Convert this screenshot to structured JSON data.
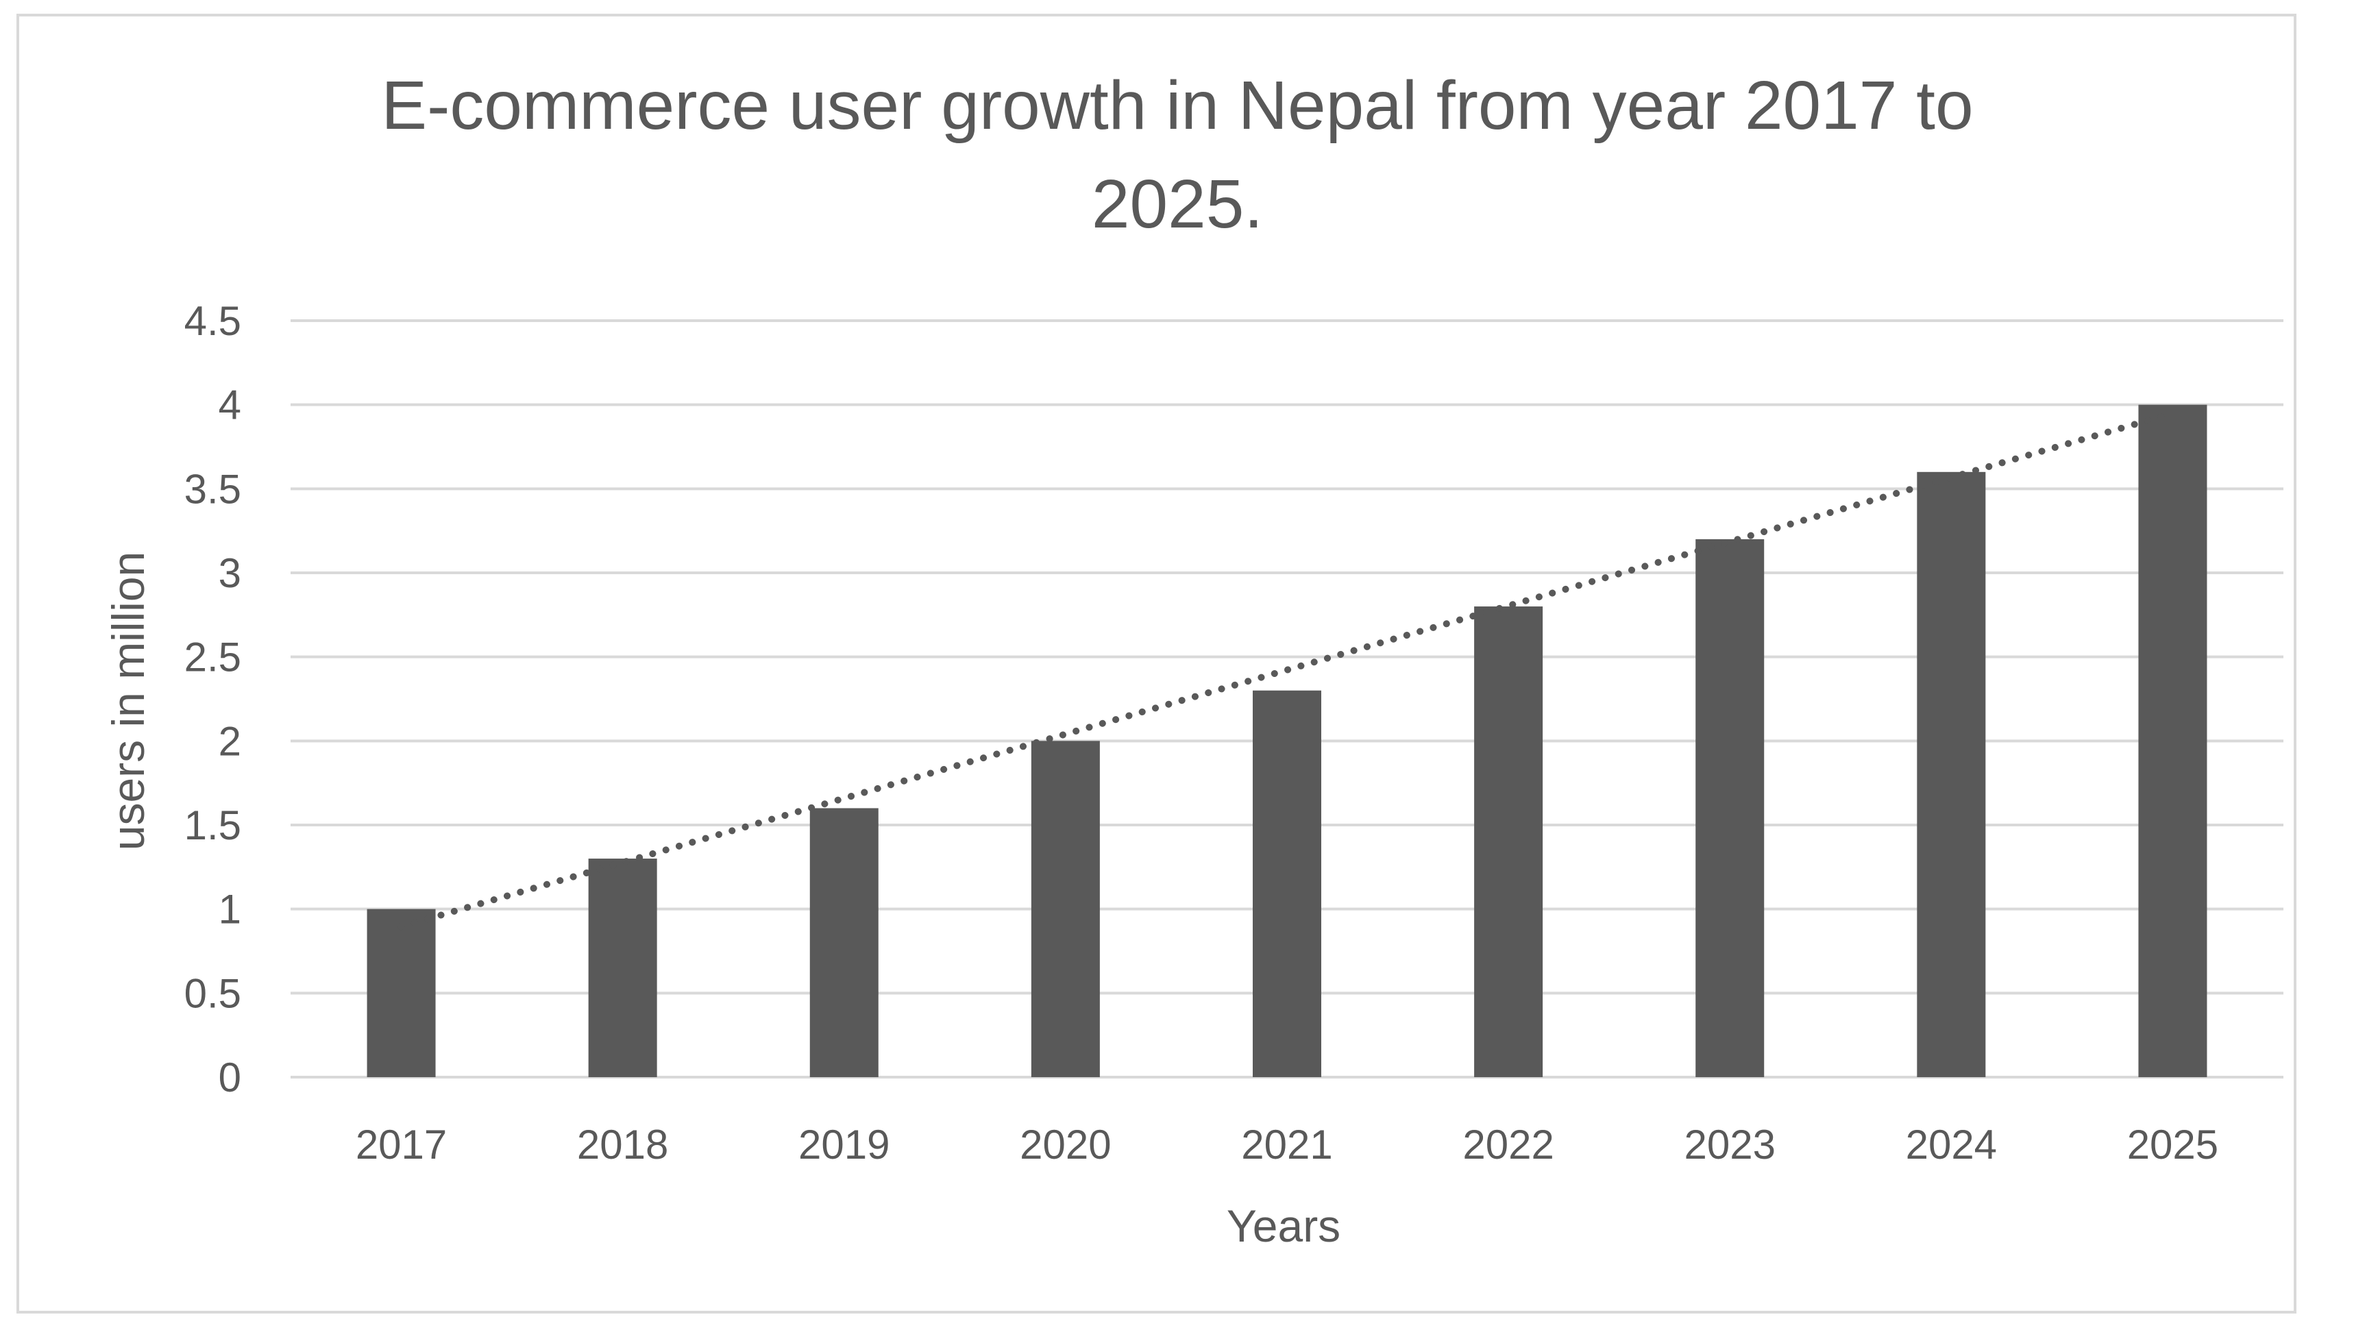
{
  "chart_data": {
    "type": "bar",
    "title_lines": [
      "E-commerce user growth in Nepal  from  year 2017 to",
      "2025."
    ],
    "xlabel": "Years",
    "ylabel": "users in million",
    "categories": [
      "2017",
      "2018",
      "2019",
      "2020",
      "2021",
      "2022",
      "2023",
      "2024",
      "2025"
    ],
    "values": [
      1.0,
      1.3,
      1.6,
      2.0,
      2.3,
      2.8,
      3.2,
      3.6,
      4.0
    ],
    "ylim": [
      0,
      4.5
    ],
    "yticks": [
      "0",
      "0.5",
      "1",
      "1.5",
      "2",
      "2.5",
      "3",
      "3.5",
      "4",
      "4.5"
    ],
    "trendline": {
      "style": "dotted",
      "type": "linear"
    },
    "grid": true,
    "legend": "none",
    "bar_color": "#595959",
    "trend_color": "#595959",
    "grid_color": "#d9d9d9"
  }
}
